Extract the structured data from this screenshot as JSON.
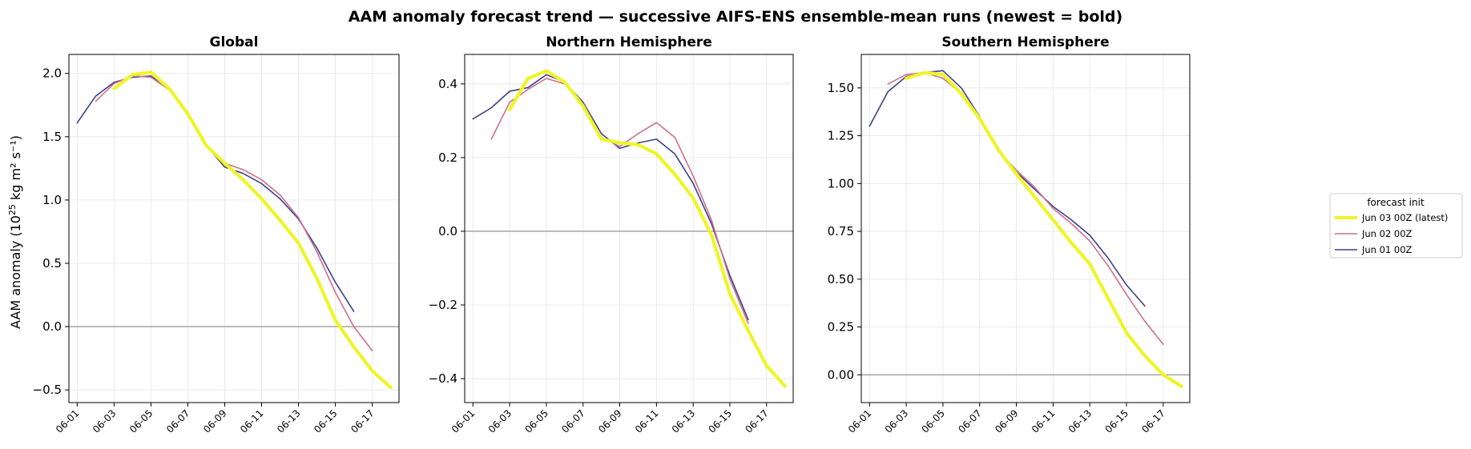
{
  "figure": {
    "title": "AAM anomaly forecast trend — successive AIFS-ENS ensemble-mean runs (newest = bold)",
    "ylabel_prefix": "AAM anomaly (10",
    "ylabel_exp": "25",
    "ylabel_suffix": " kg m² s⁻¹)"
  },
  "legend": {
    "title": "forecast init",
    "entries": [
      "Jun 03 00Z  (latest)",
      "Jun 02 00Z",
      "Jun 01 00Z"
    ]
  },
  "colors": {
    "latest": "#eef527",
    "jun02": "#cc6f8e",
    "jun01": "#3f3f8f",
    "zero_line": "#888888",
    "grid": "#e6e6e6"
  },
  "chart_data": [
    {
      "type": "line",
      "title": "Global",
      "ylim": [
        -0.6,
        2.15
      ],
      "yticks": [
        -0.5,
        0.0,
        0.5,
        1.0,
        1.5,
        2.0
      ],
      "ytick_labels": [
        "−0.5",
        "0.0",
        "0.5",
        "1.0",
        "1.5",
        "2.0"
      ],
      "xticks": [
        "06-01",
        "06-03",
        "06-05",
        "06-07",
        "06-09",
        "06-11",
        "06-13",
        "06-15",
        "06-17"
      ],
      "grid": true,
      "series": [
        {
          "name": "Jun 01 00Z",
          "x_start_day": 1,
          "values": [
            1.61,
            1.82,
            1.93,
            1.97,
            1.98,
            1.87,
            1.68,
            1.43,
            1.26,
            1.21,
            1.13,
            1.01,
            0.85,
            0.62,
            0.35,
            0.12
          ]
        },
        {
          "name": "Jun 02 00Z",
          "x_start_day": 2,
          "values": [
            1.78,
            1.92,
            1.98,
            1.97,
            1.87,
            1.68,
            1.43,
            1.29,
            1.24,
            1.16,
            1.04,
            0.86,
            0.59,
            0.27,
            0.0,
            -0.19
          ]
        },
        {
          "name": "Jun 03 00Z  (latest)",
          "x_start_day": 3,
          "values": [
            1.88,
            1.99,
            2.01,
            1.88,
            1.68,
            1.43,
            1.29,
            1.16,
            1.01,
            0.84,
            0.66,
            0.38,
            0.05,
            -0.16,
            -0.35,
            -0.48
          ]
        }
      ]
    },
    {
      "type": "line",
      "title": "Northern Hemisphere",
      "ylim": [
        -0.465,
        0.48
      ],
      "yticks": [
        -0.4,
        -0.2,
        0.0,
        0.2,
        0.4
      ],
      "ytick_labels": [
        "−0.4",
        "−0.2",
        "0.0",
        "0.2",
        "0.4"
      ],
      "xticks": [
        "06-01",
        "06-03",
        "06-05",
        "06-07",
        "06-09",
        "06-11",
        "06-13",
        "06-15",
        "06-17"
      ],
      "grid": true,
      "series": [
        {
          "name": "Jun 01 00Z",
          "x_start_day": 1,
          "values": [
            0.305,
            0.335,
            0.38,
            0.39,
            0.425,
            0.405,
            0.35,
            0.265,
            0.225,
            0.24,
            0.25,
            0.21,
            0.13,
            0.02,
            -0.12,
            -0.24
          ]
        },
        {
          "name": "Jun 02 00Z",
          "x_start_day": 2,
          "values": [
            0.25,
            0.35,
            0.385,
            0.415,
            0.4,
            0.34,
            0.255,
            0.23,
            0.265,
            0.295,
            0.255,
            0.15,
            0.03,
            -0.13,
            -0.25,
            null
          ]
        },
        {
          "name": "Jun 03 00Z  (latest)",
          "x_start_day": 3,
          "values": [
            0.33,
            0.415,
            0.435,
            0.405,
            0.34,
            0.25,
            0.24,
            0.235,
            0.21,
            0.155,
            0.09,
            -0.01,
            -0.17,
            -0.27,
            -0.365,
            -0.42
          ]
        }
      ]
    },
    {
      "type": "line",
      "title": "Southern Hemisphere",
      "ylim": [
        -0.145,
        1.675
      ],
      "yticks": [
        0.0,
        0.25,
        0.5,
        0.75,
        1.0,
        1.25,
        1.5
      ],
      "ytick_labels": [
        "0.00",
        "0.25",
        "0.50",
        "0.75",
        "1.00",
        "1.25",
        "1.50"
      ],
      "xticks": [
        "06-01",
        "06-03",
        "06-05",
        "06-07",
        "06-09",
        "06-11",
        "06-13",
        "06-15",
        "06-17"
      ],
      "grid": true,
      "series": [
        {
          "name": "Jun 01 00Z",
          "x_start_day": 1,
          "values": [
            1.3,
            1.48,
            1.56,
            1.58,
            1.59,
            1.5,
            1.35,
            1.17,
            1.06,
            0.97,
            0.88,
            0.81,
            0.73,
            0.61,
            0.47,
            0.36
          ]
        },
        {
          "name": "Jun 02 00Z",
          "x_start_day": 2,
          "values": [
            1.52,
            1.57,
            1.58,
            1.55,
            1.47,
            1.34,
            1.17,
            1.07,
            0.98,
            0.87,
            0.79,
            0.7,
            0.57,
            0.42,
            0.28,
            0.16
          ]
        },
        {
          "name": "Jun 03 00Z  (latest)",
          "x_start_day": 3,
          "values": [
            1.55,
            1.58,
            1.57,
            1.47,
            1.34,
            1.18,
            1.05,
            0.93,
            0.81,
            0.69,
            0.58,
            0.4,
            0.22,
            0.1,
            0.0,
            -0.06
          ]
        }
      ]
    }
  ]
}
